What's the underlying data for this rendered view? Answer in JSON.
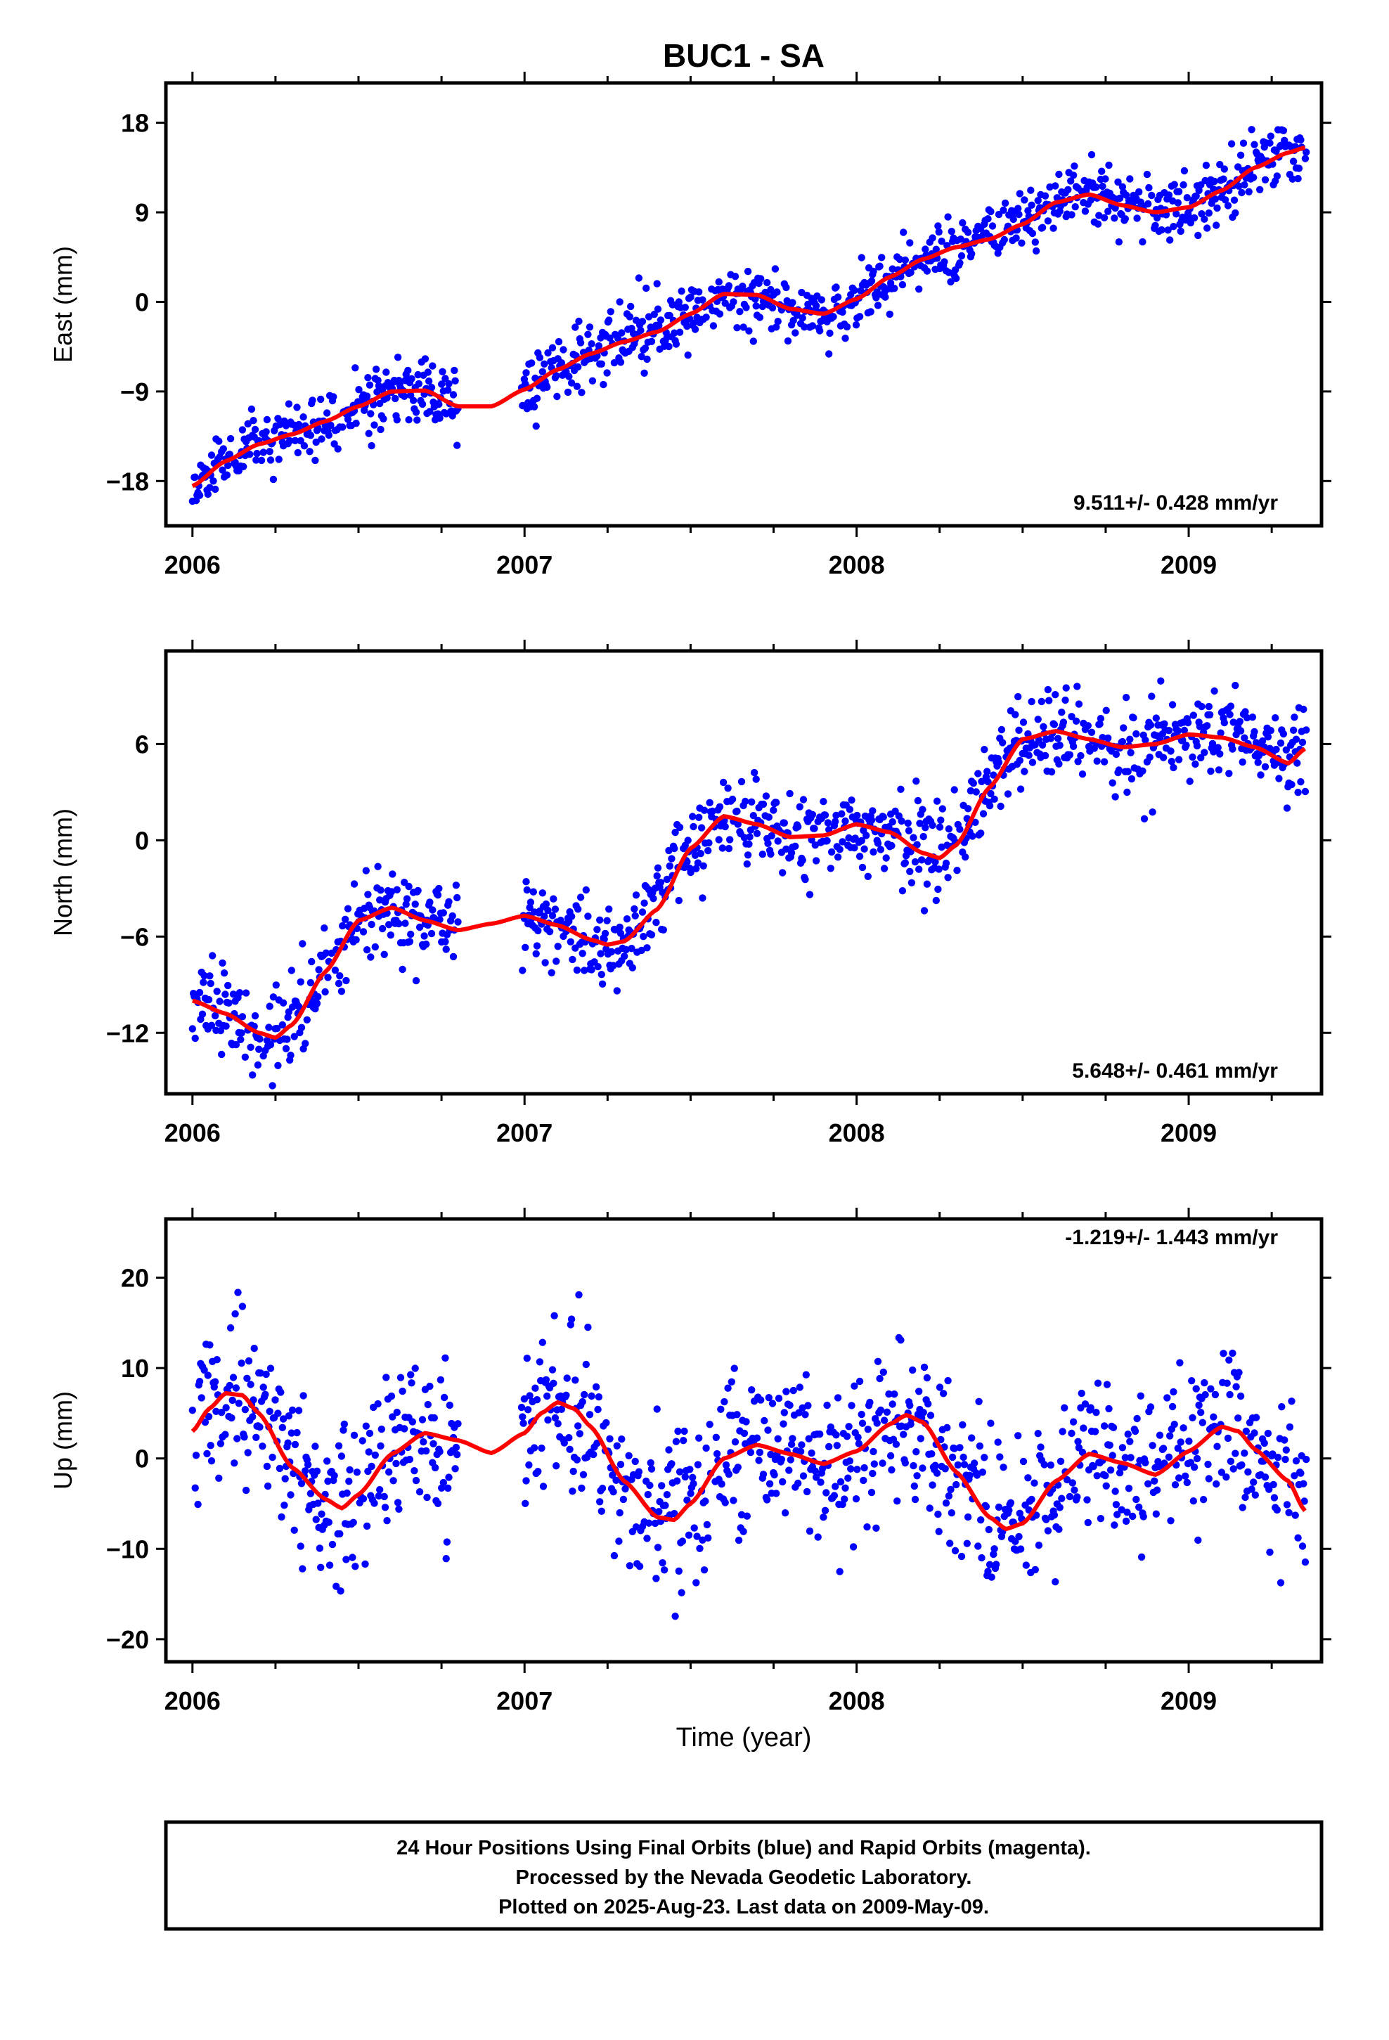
{
  "title": "BUC1 - SA",
  "colors": {
    "points": "#0000ff",
    "trend": "#ff0000",
    "frame": "#000000"
  },
  "chart_data": [
    {
      "type": "scatter",
      "component": "east",
      "ylabel": "East (mm)",
      "rate_text": "9.511+/- 0.428 mm/yr",
      "xlim": [
        2005.92,
        2009.4
      ],
      "ylim": [
        -22.5,
        22
      ],
      "yticks": [
        -18,
        -9,
        0,
        9,
        18
      ],
      "ytick_labels": [
        "−18",
        "−9",
        "0",
        "9",
        "18"
      ],
      "xticks": [
        2006,
        2007,
        2008,
        2009
      ],
      "xtick_labels": [
        "2006",
        "2007",
        "2008",
        "2009"
      ],
      "data_start": 2006.0,
      "data_end": 2009.355,
      "gaps": [
        [
          2006.8,
          2006.99
        ]
      ],
      "trend_line": {
        "x": [
          2006.0,
          2006.1,
          2006.2,
          2006.3,
          2006.4,
          2006.5,
          2006.6,
          2006.7,
          2006.8,
          2006.9,
          2007.0,
          2007.1,
          2007.2,
          2007.3,
          2007.4,
          2007.5,
          2007.6,
          2007.7,
          2007.8,
          2007.9,
          2008.0,
          2008.1,
          2008.2,
          2008.3,
          2008.4,
          2008.5,
          2008.6,
          2008.7,
          2008.8,
          2008.9,
          2009.0,
          2009.1,
          2009.2,
          2009.3,
          2009.35
        ],
        "y": [
          -18.5,
          -16.0,
          -14.3,
          -13.3,
          -12.0,
          -10.5,
          -9.0,
          -8.9,
          -10.5,
          -10.5,
          -8.8,
          -6.8,
          -5.2,
          -4.0,
          -3.0,
          -1.2,
          0.8,
          0.7,
          -0.7,
          -1.2,
          0.3,
          2.5,
          4.3,
          5.5,
          6.3,
          7.8,
          10.0,
          10.8,
          9.7,
          9.0,
          9.5,
          11.2,
          13.5,
          15.0,
          15.5
        ]
      },
      "scatter_sd": 1.6,
      "seed": 11
    },
    {
      "type": "scatter",
      "component": "north",
      "ylabel": "North (mm)",
      "rate_text": "5.648+/- 0.461 mm/yr",
      "xlim": [
        2005.92,
        2009.4
      ],
      "ylim": [
        -15.8,
        11.8
      ],
      "yticks": [
        -12,
        -6,
        0,
        6
      ],
      "ytick_labels": [
        "−12",
        "−6",
        "0",
        "6"
      ],
      "xticks": [
        2006,
        2007,
        2008,
        2009
      ],
      "xtick_labels": [
        "2006",
        "2007",
        "2008",
        "2009"
      ],
      "data_start": 2006.0,
      "data_end": 2009.355,
      "gaps": [
        [
          2006.8,
          2006.99
        ]
      ],
      "trend_line": {
        "x": [
          2006.0,
          2006.1,
          2006.2,
          2006.25,
          2006.3,
          2006.4,
          2006.5,
          2006.6,
          2006.7,
          2006.8,
          2006.9,
          2007.0,
          2007.1,
          2007.2,
          2007.25,
          2007.3,
          2007.4,
          2007.5,
          2007.6,
          2007.7,
          2007.8,
          2007.9,
          2008.0,
          2008.1,
          2008.2,
          2008.25,
          2008.3,
          2008.4,
          2008.5,
          2008.6,
          2008.7,
          2008.8,
          2008.9,
          2009.0,
          2009.1,
          2009.2,
          2009.3,
          2009.35
        ],
        "y": [
          -10.0,
          -10.8,
          -12.0,
          -12.3,
          -11.5,
          -8.2,
          -5.0,
          -4.2,
          -5.0,
          -5.6,
          -5.2,
          -4.7,
          -5.3,
          -6.2,
          -6.5,
          -6.3,
          -4.3,
          -0.5,
          1.5,
          1.0,
          0.2,
          0.3,
          1.0,
          0.5,
          -0.8,
          -1.1,
          -0.3,
          3.3,
          6.3,
          6.8,
          6.3,
          5.8,
          6.0,
          6.6,
          6.4,
          5.8,
          4.8,
          5.7
        ]
      },
      "scatter_sd": 1.35,
      "seed": 23
    },
    {
      "type": "scatter",
      "component": "up",
      "ylabel": "Up (mm)",
      "rate_text": "-1.219+/- 1.443 mm/yr",
      "xlim": [
        2005.92,
        2009.4
      ],
      "ylim": [
        -22.5,
        26.5
      ],
      "yticks": [
        -20,
        -10,
        0,
        10,
        20
      ],
      "ytick_labels": [
        "−20",
        "−10",
        "0",
        "10",
        "20"
      ],
      "xticks": [
        2006,
        2007,
        2008,
        2009
      ],
      "xtick_labels": [
        "2006",
        "2007",
        "2008",
        "2009"
      ],
      "xlabel": "Time (year)",
      "data_start": 2006.0,
      "data_end": 2009.355,
      "gaps": [
        [
          2006.8,
          2006.99
        ]
      ],
      "trend_line": {
        "x": [
          2006.0,
          2006.05,
          2006.1,
          2006.15,
          2006.2,
          2006.3,
          2006.4,
          2006.45,
          2006.5,
          2006.6,
          2006.7,
          2006.8,
          2006.9,
          2007.0,
          2007.05,
          2007.1,
          2007.15,
          2007.2,
          2007.3,
          2007.4,
          2007.45,
          2007.5,
          2007.6,
          2007.7,
          2007.8,
          2007.9,
          2008.0,
          2008.1,
          2008.15,
          2008.2,
          2008.3,
          2008.4,
          2008.45,
          2008.5,
          2008.6,
          2008.7,
          2008.8,
          2008.9,
          2009.0,
          2009.1,
          2009.15,
          2009.2,
          2009.3,
          2009.35
        ],
        "y": [
          3.0,
          5.5,
          7.2,
          7.0,
          5.0,
          -1.0,
          -4.5,
          -5.5,
          -4.0,
          0.5,
          2.8,
          2.0,
          0.6,
          2.8,
          5.0,
          6.2,
          5.5,
          3.5,
          -2.5,
          -6.5,
          -6.8,
          -5.0,
          0.0,
          1.5,
          0.5,
          -0.6,
          0.8,
          3.8,
          4.8,
          4.0,
          -1.5,
          -6.5,
          -7.8,
          -7.2,
          -2.5,
          0.5,
          -0.5,
          -1.8,
          0.8,
          3.5,
          3.0,
          1.0,
          -2.5,
          -5.8
        ]
      },
      "scatter_sd": 4.3,
      "seed": 37
    }
  ],
  "caption": {
    "line1": "24 Hour Positions Using Final Orbits (blue) and Rapid Orbits (magenta).",
    "line2": "Processed by the Nevada Geodetic Laboratory.",
    "line3": "Plotted on 2025-Aug-23. Last data on 2009-May-09."
  }
}
